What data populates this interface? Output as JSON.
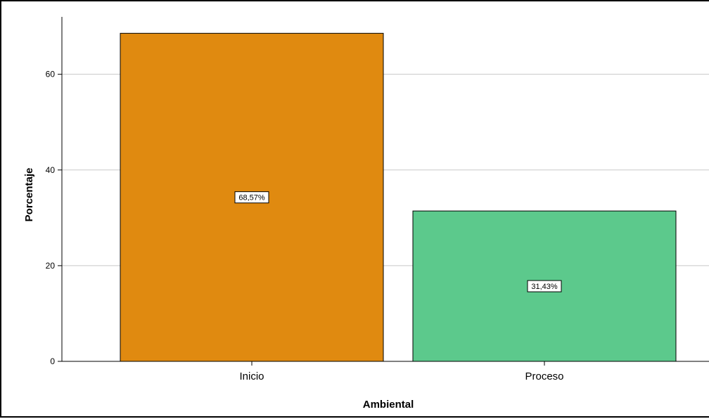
{
  "chart_data": {
    "type": "bar",
    "categories": [
      "Inicio",
      "Proceso"
    ],
    "values": [
      68.57,
      31.43
    ],
    "data_labels": [
      "68,57%",
      "31,43%"
    ],
    "colors": [
      "#e08a10",
      "#5cc98c"
    ],
    "xlabel": "Ambiental",
    "ylabel": "Porcentaje",
    "ylim": [
      0,
      72
    ],
    "yticks": [
      0,
      20,
      40,
      60
    ],
    "ytick_labels": [
      "0",
      "20",
      "40",
      "60"
    ],
    "grid": true,
    "legend": false
  }
}
